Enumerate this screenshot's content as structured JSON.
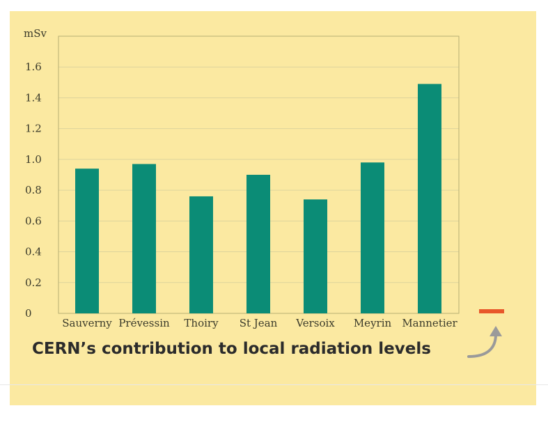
{
  "chart_data": {
    "type": "bar",
    "ylabel": "mSv",
    "categories": [
      "Sauverny",
      "Prévessin",
      "Thoiry",
      "St Jean",
      "Versoix",
      "Meyrin",
      "Mannetier"
    ],
    "values": [
      0.94,
      0.97,
      0.76,
      0.9,
      0.74,
      0.98,
      1.49
    ],
    "cern_contribution": 0.02,
    "ylim": [
      0,
      1.8
    ],
    "yticks": [
      "0",
      "0.2",
      "0.4",
      "0.6",
      "0.8",
      "1.0",
      "1.2",
      "1.4",
      "1.6"
    ],
    "grid": true,
    "legend": {
      "label": "CERN’s contribution to local radiation levels",
      "marker": "dash-orange",
      "pointer": "curved-arrow"
    }
  },
  "colors": {
    "background": "#fbe9a1",
    "bar": "#0b8c76",
    "cern_marker": "#e8572a",
    "arrow": "#9a9a9a",
    "gridline": "#ddd49c",
    "axis": "#b7ae74"
  }
}
